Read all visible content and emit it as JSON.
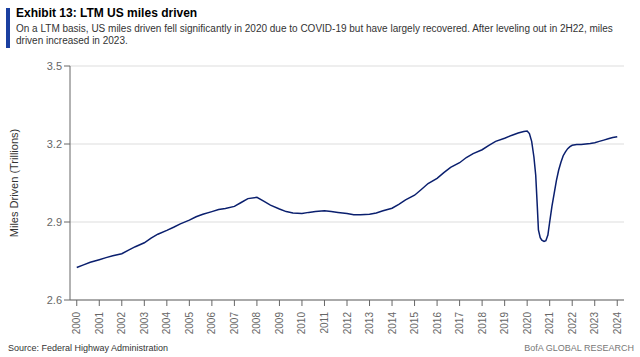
{
  "chart_data": {
    "type": "line",
    "title": "Exhibit 13: LTM US miles driven",
    "subtitle": "On a LTM basis, US miles driven fell significantly in 2020 due to COVID-19 but have largely recovered. After leveling out in 2H22, miles driven increased in 2023.",
    "ylabel": "Miles Driven (Trillions)",
    "annotations": [
      "Source: Federal Highway Administration",
      "BofA GLOBAL RESEARCH"
    ],
    "color": "#0a1f6e",
    "grid": true,
    "xlim": [
      1999.7,
      2024.3
    ],
    "xticks": [
      2000,
      2001,
      2002,
      2003,
      2004,
      2005,
      2006,
      2007,
      2008,
      2009,
      2010,
      2011,
      2012,
      2013,
      2014,
      2015,
      2016,
      2017,
      2018,
      2019,
      2020,
      2021,
      2022,
      2023,
      2024
    ],
    "ylim": [
      2.6,
      3.5
    ],
    "yticks": [
      2.6,
      2.9,
      3.2,
      3.5
    ],
    "x": [
      2000.0,
      2000.3,
      2000.6,
      2001.0,
      2001.3,
      2001.6,
      2002.0,
      2002.3,
      2002.6,
      2003.0,
      2003.3,
      2003.6,
      2004.0,
      2004.3,
      2004.6,
      2005.0,
      2005.3,
      2005.6,
      2006.0,
      2006.3,
      2006.6,
      2007.0,
      2007.3,
      2007.6,
      2008.0,
      2008.3,
      2008.6,
      2009.0,
      2009.3,
      2009.6,
      2010.0,
      2010.3,
      2010.6,
      2011.0,
      2011.3,
      2011.6,
      2012.0,
      2012.3,
      2012.6,
      2013.0,
      2013.3,
      2013.6,
      2014.0,
      2014.3,
      2014.6,
      2015.0,
      2015.3,
      2015.6,
      2016.0,
      2016.3,
      2016.6,
      2017.0,
      2017.3,
      2017.6,
      2018.0,
      2018.3,
      2018.6,
      2019.0,
      2019.3,
      2019.6,
      2019.85,
      2020.0,
      2020.1,
      2020.2,
      2020.3,
      2020.38,
      2020.45,
      2020.5,
      2020.58,
      2020.65,
      2020.75,
      2020.83,
      2020.92,
      2021.0,
      2021.1,
      2021.2,
      2021.3,
      2021.4,
      2021.5,
      2021.6,
      2021.7,
      2021.8,
      2021.9,
      2022.0,
      2022.2,
      2022.4,
      2022.6,
      2022.8,
      2023.0,
      2023.2,
      2023.4,
      2023.6,
      2023.8,
      2024.0
    ],
    "values": [
      2.725,
      2.735,
      2.745,
      2.755,
      2.763,
      2.77,
      2.778,
      2.792,
      2.805,
      2.82,
      2.838,
      2.853,
      2.868,
      2.88,
      2.893,
      2.907,
      2.92,
      2.93,
      2.94,
      2.948,
      2.952,
      2.96,
      2.975,
      2.99,
      2.995,
      2.98,
      2.965,
      2.95,
      2.94,
      2.935,
      2.933,
      2.937,
      2.94,
      2.943,
      2.94,
      2.937,
      2.933,
      2.928,
      2.928,
      2.93,
      2.935,
      2.943,
      2.953,
      2.968,
      2.985,
      3.003,
      3.025,
      3.048,
      3.068,
      3.09,
      3.11,
      3.128,
      3.148,
      3.163,
      3.178,
      3.195,
      3.21,
      3.222,
      3.233,
      3.242,
      3.248,
      3.25,
      3.24,
      3.21,
      3.15,
      3.08,
      2.96,
      2.87,
      2.84,
      2.83,
      2.825,
      2.828,
      2.85,
      2.9,
      2.96,
      3.01,
      3.06,
      3.1,
      3.13,
      3.155,
      3.17,
      3.182,
      3.19,
      3.195,
      3.198,
      3.198,
      3.2,
      3.202,
      3.205,
      3.21,
      3.215,
      3.22,
      3.225,
      3.228
    ]
  }
}
